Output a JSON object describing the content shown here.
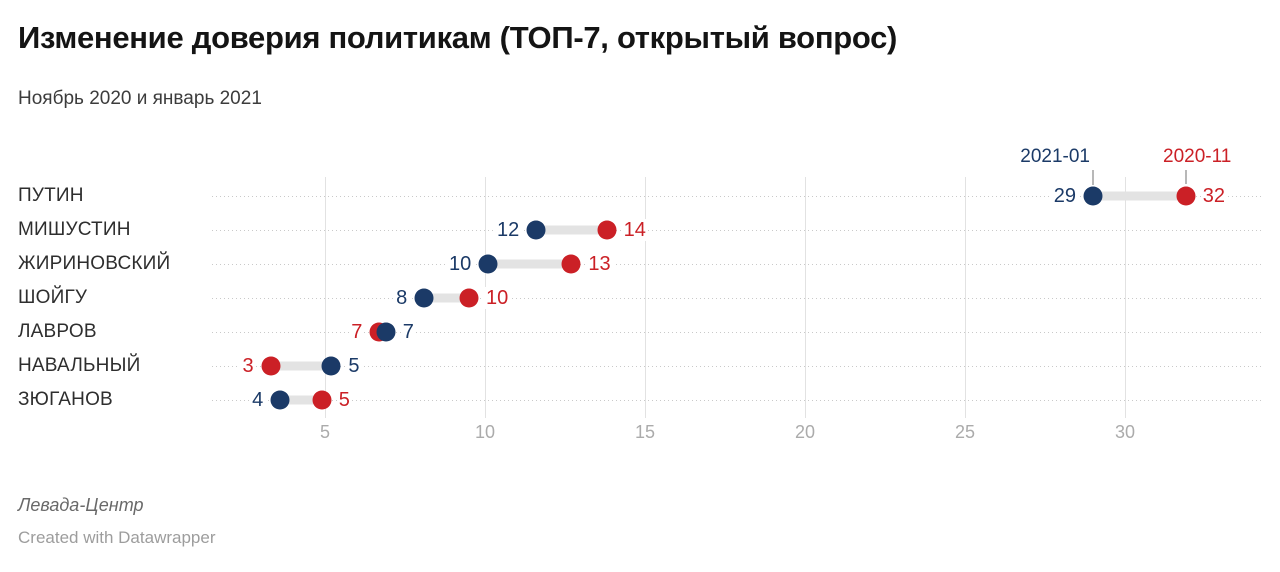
{
  "header": {
    "title": "Изменение доверия политикам (ТОП-7, открытый вопрос)",
    "subtitle": "Ноябрь 2020 и январь 2021"
  },
  "legend": {
    "items": [
      {
        "label": "2021-01",
        "color": "#1b3a67"
      },
      {
        "label": "2020-11",
        "color": "#cb2026"
      }
    ]
  },
  "chart_data": {
    "type": "dumbbell-range",
    "title": "Изменение доверия политикам (ТОП-7, открытый вопрос)",
    "subtitle": "Ноябрь 2020 и январь 2021",
    "categories": [
      "ПУТИН",
      "МИШУСТИН",
      "ЖИРИНОВСКИЙ",
      "ШОЙГУ",
      "ЛАВРОВ",
      "НАВАЛЬНЫЙ",
      "ЗЮГАНОВ"
    ],
    "series": [
      {
        "name": "2021-01",
        "color": "#1b3a67",
        "values": [
          29,
          12,
          10,
          8,
          7,
          5,
          4
        ],
        "values_plot": [
          29.0,
          11.6,
          10.1,
          8.1,
          6.9,
          5.2,
          3.6
        ]
      },
      {
        "name": "2020-11",
        "color": "#cb2026",
        "values": [
          32,
          14,
          13,
          10,
          7,
          3,
          5
        ],
        "values_plot": [
          31.9,
          13.8,
          12.7,
          9.5,
          6.7,
          3.3,
          4.9
        ]
      }
    ],
    "x_ticks": [
      5,
      10,
      15,
      20,
      25,
      30
    ],
    "xlim": [
      0,
      33
    ],
    "grid": "vertical solid gridlines at ticks, dotted horizontal row lines",
    "legend_position": "top-right",
    "bar_color": "#e3e3e3"
  },
  "footer": {
    "source": "Левада-Центр",
    "credit": "Created with Datawrapper"
  }
}
